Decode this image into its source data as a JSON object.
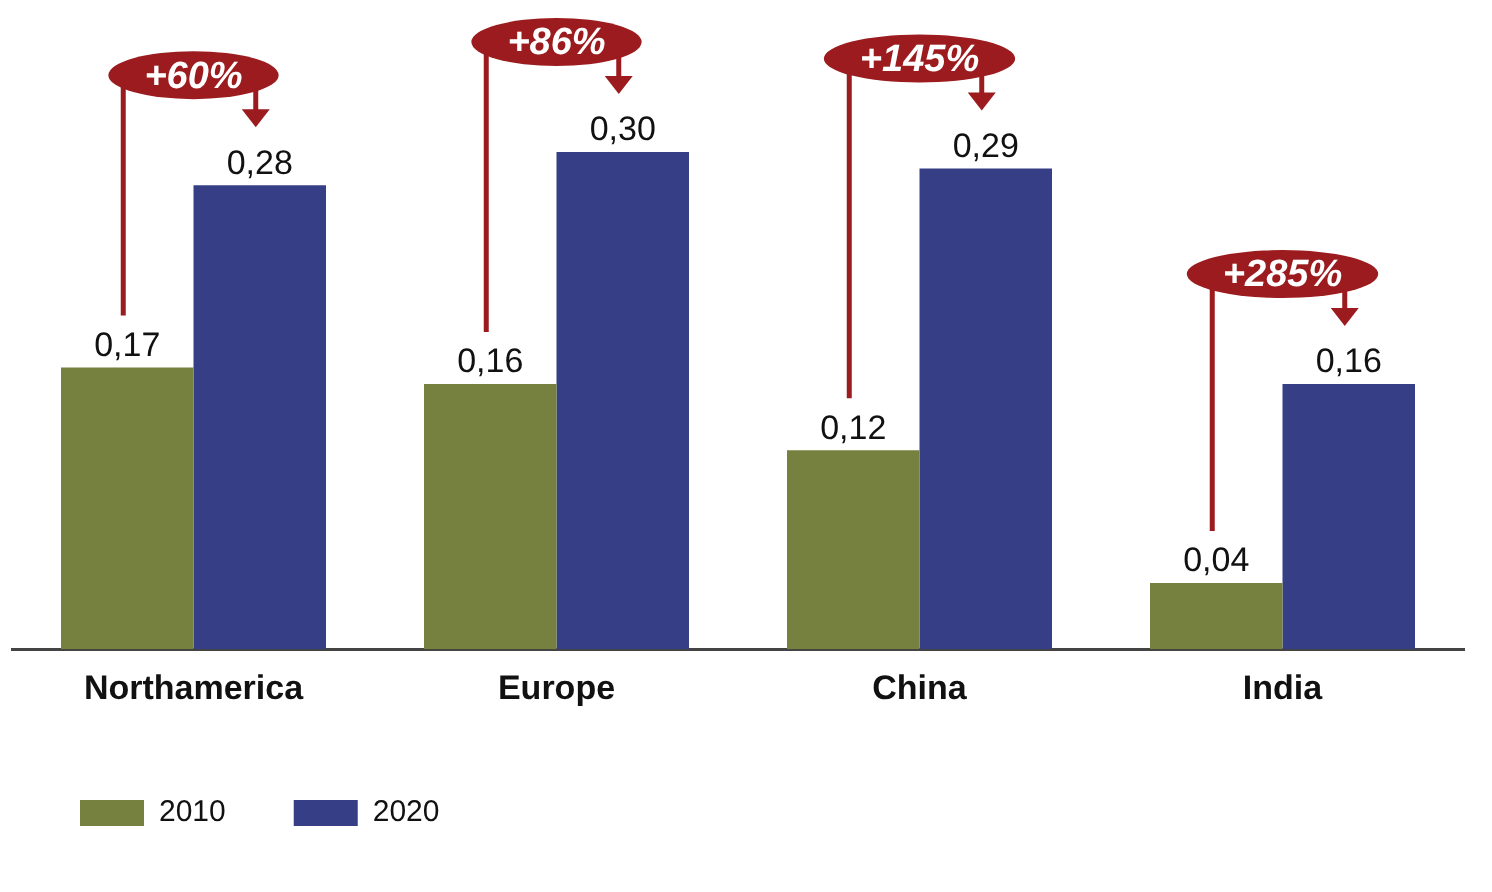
{
  "chart_data": {
    "type": "bar",
    "categories": [
      "Northamerica",
      "Europe",
      "China",
      "India"
    ],
    "series": [
      {
        "name": "2010",
        "color": "#76813f",
        "values": [
          0.17,
          0.16,
          0.12,
          0.04
        ],
        "value_labels": [
          "0,17",
          "0,16",
          "0,12",
          "0,04"
        ]
      },
      {
        "name": "2020",
        "color": "#363f85",
        "values": [
          0.28,
          0.3,
          0.29,
          0.16
        ],
        "value_labels": [
          "0,28",
          "0,30",
          "0,29",
          "0,16"
        ]
      }
    ],
    "annotations": [
      "+60%",
      "+86%",
      "+145%",
      "+285%"
    ],
    "grid": false,
    "legend": "bottom left",
    "tick_labels": "x"
  }
}
